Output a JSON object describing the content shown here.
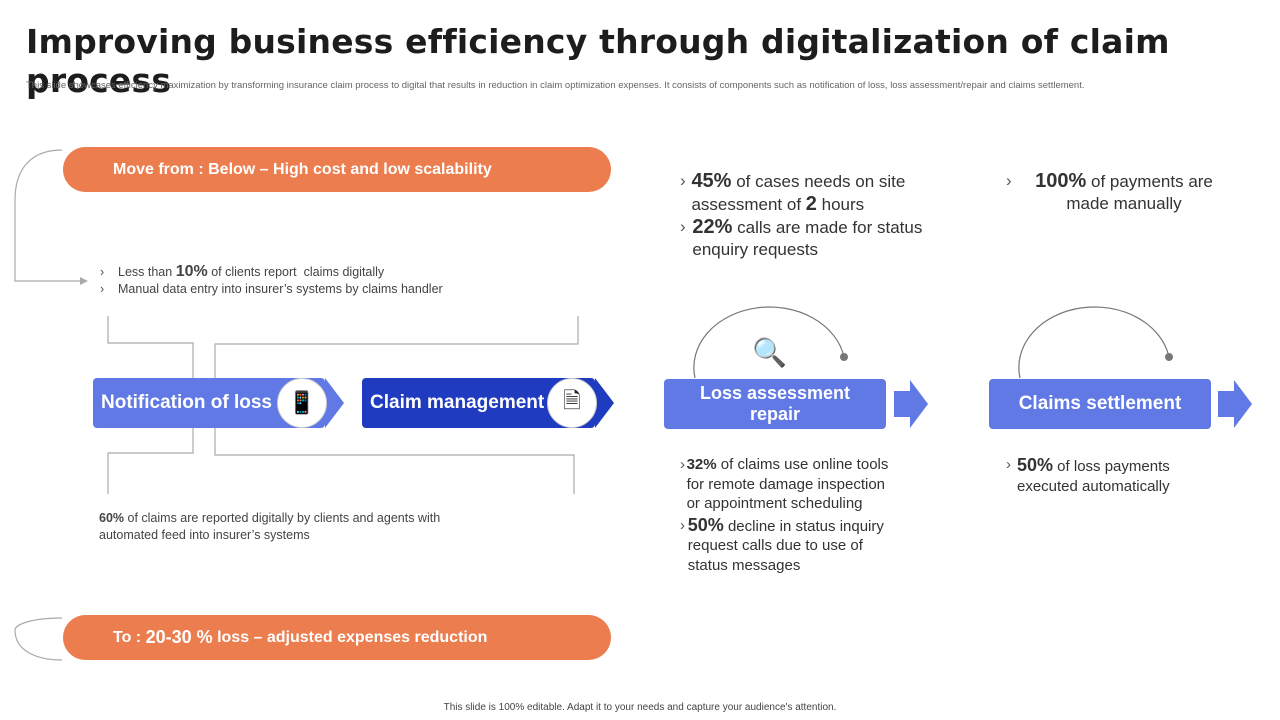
{
  "title": "Improving business efficiency through digitalization of claim process",
  "subtitle": "This slide showcases efficiency maximization by transforming insurance claim process to digital that results in reduction in claim optimization expenses. It consists of components such as notification of loss, loss assessment/repair and claims settlement.",
  "move_from": "Move from : Below – High cost and low scalability",
  "to": {
    "prefix": "To : ",
    "value": "20-30 %",
    "suffix": " loss – adjusted expenses reduction"
  },
  "left_top_bullets": [
    {
      "pre": "Less than ",
      "bold": "10%",
      "post": " of clients report  claims digitally"
    },
    {
      "pre": "Manual data entry into insurer’s systems by claims handler",
      "bold": "",
      "post": ""
    }
  ],
  "left_bottom": {
    "bold": "60%",
    "post": " of claims are reported digitally by clients and agents with automated feed into insurer’s systems"
  },
  "steps": [
    {
      "label": "Notification of loss",
      "icon": "mobile-bell-icon",
      "color": "#6079E4"
    },
    {
      "label": "Claim management",
      "icon": "documents-icon",
      "color": "#1F3BBF"
    },
    {
      "label": "Loss assessment repair",
      "icon": "magnifier-icon",
      "color": "#6079E4"
    },
    {
      "label": "Claims settlement",
      "color": "#6079E4"
    }
  ],
  "loss_top": [
    {
      "bold": "45%",
      "post": " of cases needs on site assessment of ",
      "bold2": "2",
      "post2": " hours"
    },
    {
      "bold": "22%",
      "post": " calls are made for status enquiry requests",
      "bold2": "",
      "post2": ""
    }
  ],
  "settle_top": {
    "bold": "100%",
    "post": " of payments are made manually"
  },
  "loss_bottom": [
    {
      "bold": "32%",
      "post": " of claims use online tools for remote damage inspection or appointment scheduling"
    },
    {
      "bold": "50%",
      "post": " decline in status inquiry request calls due to use of status messages"
    }
  ],
  "settle_bottom": {
    "bold": "50%",
    "post": " of loss payments executed automatically"
  },
  "footer": "This slide is 100% editable. Adapt it to your needs and capture your audience's attention.",
  "colors": {
    "orange": "#EC7D4F",
    "light_blue": "#6079E4",
    "dark_blue": "#1F3BBF"
  }
}
